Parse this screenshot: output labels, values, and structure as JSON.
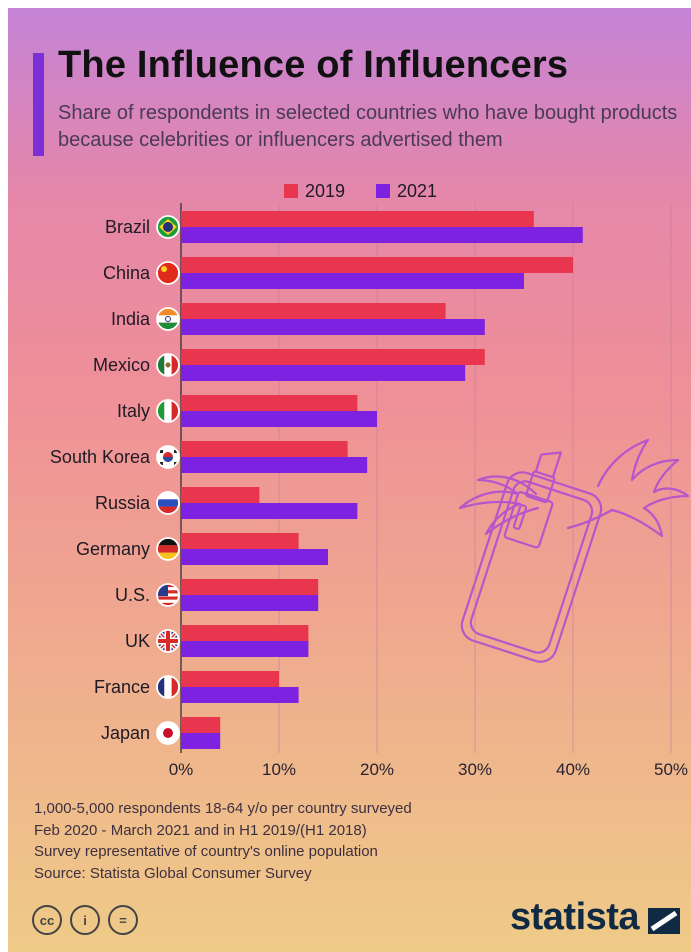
{
  "title": "The Influence of Influencers",
  "subtitle": "Share of respondents in selected countries who have bought products because celebrities or influencers advertised them",
  "colors": {
    "series_2019": "#e8364f",
    "series_2021": "#7d22e0",
    "accent": "#7b2fd6",
    "brand": "#102a43"
  },
  "chart_data": {
    "type": "bar",
    "orientation": "horizontal",
    "title": "The Influence of Influencers",
    "subtitle": "Share of respondents in selected countries who have bought products because celebrities or influencers advertised them",
    "categories": [
      "Brazil",
      "China",
      "India",
      "Mexico",
      "Italy",
      "South Korea",
      "Russia",
      "Germany",
      "U.S.",
      "UK",
      "France",
      "Japan"
    ],
    "series": [
      {
        "name": "2019",
        "values": [
          36,
          40,
          27,
          31,
          18,
          17,
          8,
          12,
          14,
          13,
          10,
          4
        ]
      },
      {
        "name": "2021",
        "values": [
          41,
          35,
          31,
          29,
          20,
          19,
          18,
          15,
          14,
          13,
          12,
          4
        ]
      }
    ],
    "xlim": [
      0,
      50
    ],
    "ticks": [
      0,
      10,
      20,
      30,
      40,
      50
    ],
    "tick_labels": [
      "0%",
      "10%",
      "20%",
      "30%",
      "40%",
      "50%"
    ],
    "grid": true,
    "legend_position": "top",
    "xlabel": "",
    "ylabel": ""
  },
  "flags": [
    "brazil-flag-icon",
    "china-flag-icon",
    "india-flag-icon",
    "mexico-flag-icon",
    "italy-flag-icon",
    "south-korea-flag-icon",
    "russia-flag-icon",
    "germany-flag-icon",
    "us-flag-icon",
    "uk-flag-icon",
    "france-flag-icon",
    "japan-flag-icon"
  ],
  "footnotes": [
    "1,000-5,000 respondents 18-64 y/o per country surveyed",
    "Feb 2020 - March 2021 and in H1 2019/(H1 2018)",
    "Survey representative of country's online population",
    "Source: Statista Global Consumer Survey"
  ],
  "license": {
    "cc": "cc",
    "by": "i",
    "nd": "="
  },
  "brand": "statista"
}
